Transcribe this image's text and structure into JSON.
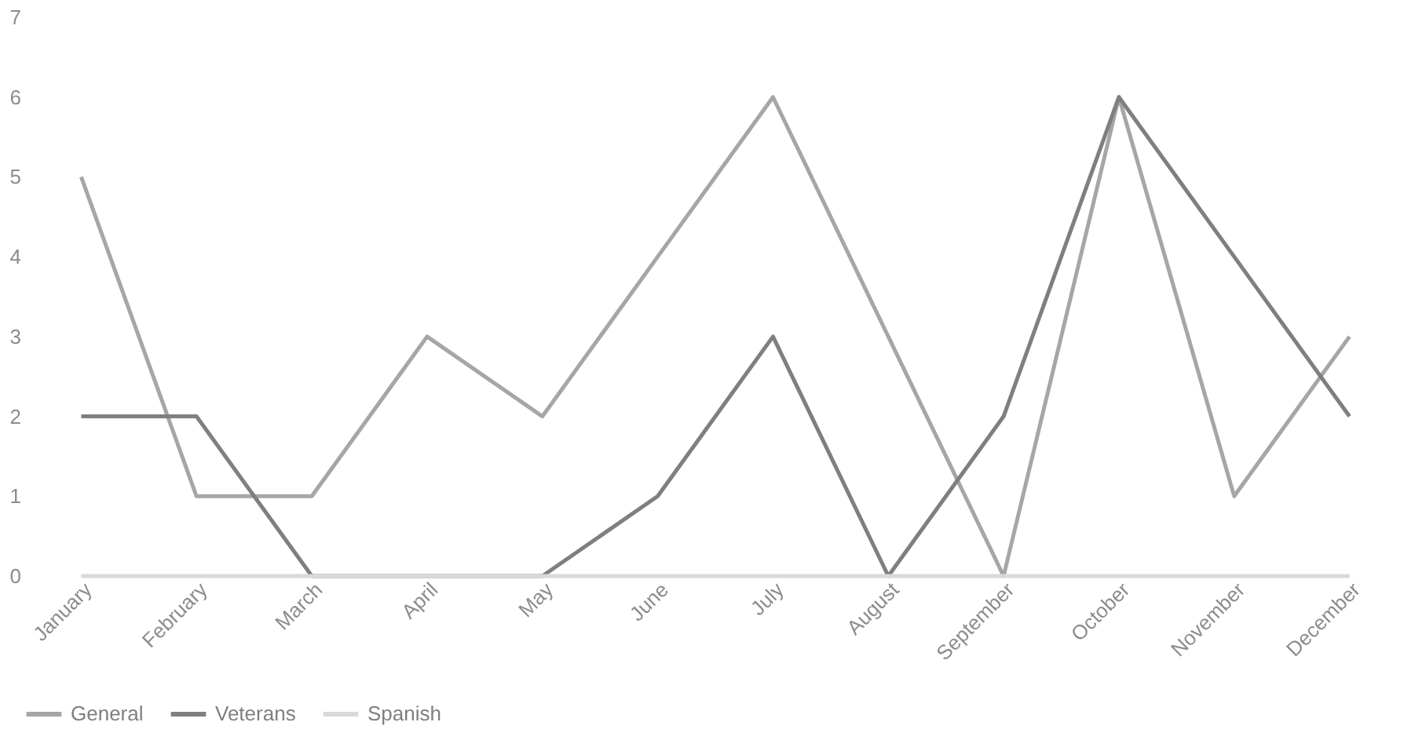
{
  "chart_data": {
    "type": "line",
    "categories": [
      "January",
      "February",
      "March",
      "April",
      "May",
      "June",
      "July",
      "August",
      "September",
      "October",
      "November",
      "December"
    ],
    "series": [
      {
        "name": "General",
        "color": "#a6a6a6",
        "values": [
          5,
          1,
          1,
          3,
          2,
          4,
          6,
          3,
          0,
          6,
          1,
          3
        ]
      },
      {
        "name": "Veterans",
        "color": "#7f7f7f",
        "values": [
          2,
          2,
          0,
          0,
          0,
          1,
          3,
          0,
          2,
          6,
          4,
          2
        ]
      },
      {
        "name": "Spanish",
        "color": "#d9d9d9",
        "values": [
          0,
          0,
          0,
          0,
          0,
          0,
          0,
          0,
          0,
          0,
          0,
          0
        ]
      }
    ],
    "ylim": [
      0,
      7
    ],
    "yticks": [
      0,
      1,
      2,
      3,
      4,
      5,
      6,
      7
    ],
    "grid": false,
    "legend": "bottom",
    "marker": "none",
    "line_style": "solid"
  }
}
